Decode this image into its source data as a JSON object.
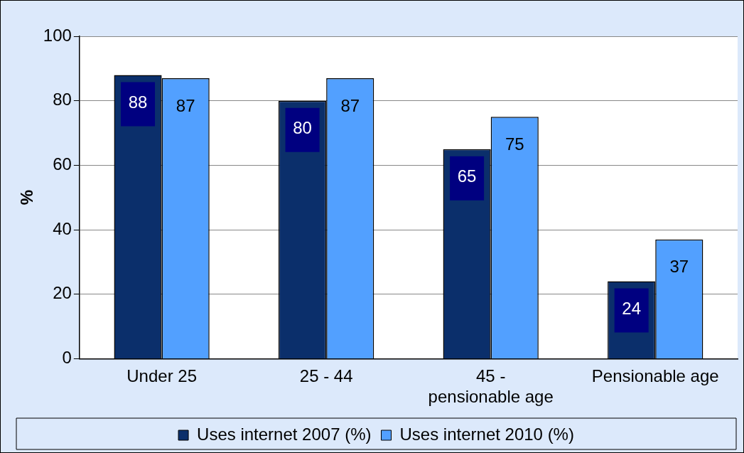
{
  "chart_data": {
    "type": "bar",
    "ylabel": "%",
    "categories": [
      "Under 25",
      "25 - 44",
      "45 - pensionable age",
      "Pensionable age"
    ],
    "series": [
      {
        "name": "Uses internet 2007 (%)",
        "color": "#0b2f6b",
        "values": [
          88,
          80,
          65,
          24
        ]
      },
      {
        "name": "Uses internet 2010 (%)",
        "color": "#52a0ff",
        "values": [
          87,
          87,
          75,
          37
        ]
      }
    ],
    "ylim": [
      0,
      100
    ],
    "yticks": [
      0,
      20,
      40,
      60,
      80,
      100
    ],
    "grid": "y",
    "legend": "bottom",
    "data_labels": true
  }
}
